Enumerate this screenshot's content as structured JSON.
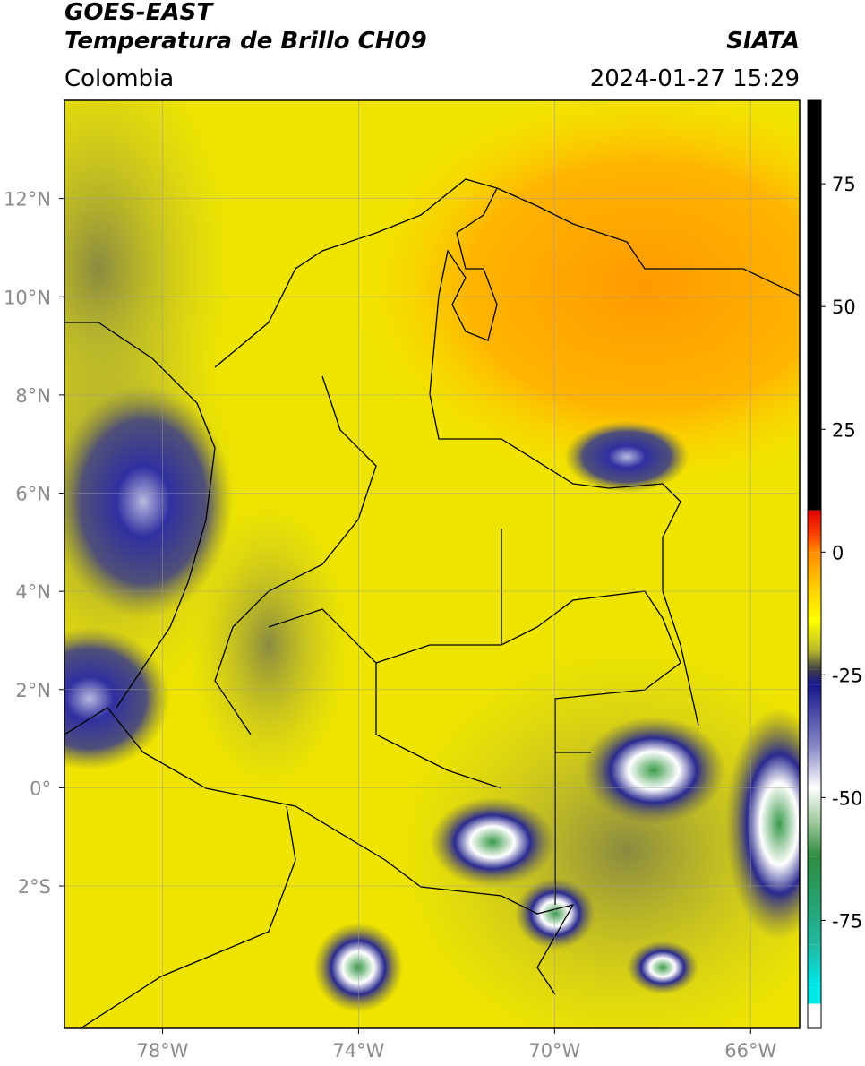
{
  "header": {
    "title": "GOES-EAST",
    "subtitle": "Temperatura de Brillo CH09",
    "source": "SIATA",
    "region": "Colombia",
    "datetime": "2024-01-27 15:29"
  },
  "map": {
    "xlim": [
      -80,
      -65
    ],
    "ylim": [
      -4.9,
      14
    ],
    "grid": true,
    "xticks": [
      {
        "value": -78,
        "label": "78°W"
      },
      {
        "value": -74,
        "label": "74°W"
      },
      {
        "value": -70,
        "label": "70°W"
      },
      {
        "value": -66,
        "label": "66°W"
      }
    ],
    "yticks": [
      {
        "value": 12,
        "label": "12°N"
      },
      {
        "value": 10,
        "label": "10°N"
      },
      {
        "value": 8,
        "label": "8°N"
      },
      {
        "value": 6,
        "label": "6°N"
      },
      {
        "value": 4,
        "label": "4°N"
      },
      {
        "value": 2,
        "label": "2°N"
      },
      {
        "value": 0,
        "label": "0°"
      },
      {
        "value": -2,
        "label": "2°S"
      }
    ]
  },
  "colorbar": {
    "lim": [
      -97,
      92
    ],
    "ticks": [
      75,
      50,
      25,
      0,
      -25,
      -50,
      -75
    ],
    "stops": [
      {
        "value": 92,
        "color": "#000000"
      },
      {
        "value": 8.5,
        "color": "#000000"
      },
      {
        "value": 8.5,
        "color": "#e00000"
      },
      {
        "value": 3,
        "color": "#ff4a00"
      },
      {
        "value": 0,
        "color": "#ff8c00"
      },
      {
        "value": -8,
        "color": "#ffd200"
      },
      {
        "value": -14,
        "color": "#ffff00"
      },
      {
        "value": -20,
        "color": "#b8b82a"
      },
      {
        "value": -24,
        "color": "#3c3c48"
      },
      {
        "value": -27,
        "color": "#16168c"
      },
      {
        "value": -40,
        "color": "#8c8cc8"
      },
      {
        "value": -48,
        "color": "#ffffff"
      },
      {
        "value": -55,
        "color": "#9cc89c"
      },
      {
        "value": -62,
        "color": "#2e8b3e"
      },
      {
        "value": -80,
        "color": "#20b8a0"
      },
      {
        "value": -88,
        "color": "#00e5e5"
      },
      {
        "value": -92,
        "color": "#00e5e5"
      },
      {
        "value": -92,
        "color": "#ffffff"
      },
      {
        "value": -97,
        "color": "#ffffff"
      }
    ]
  }
}
